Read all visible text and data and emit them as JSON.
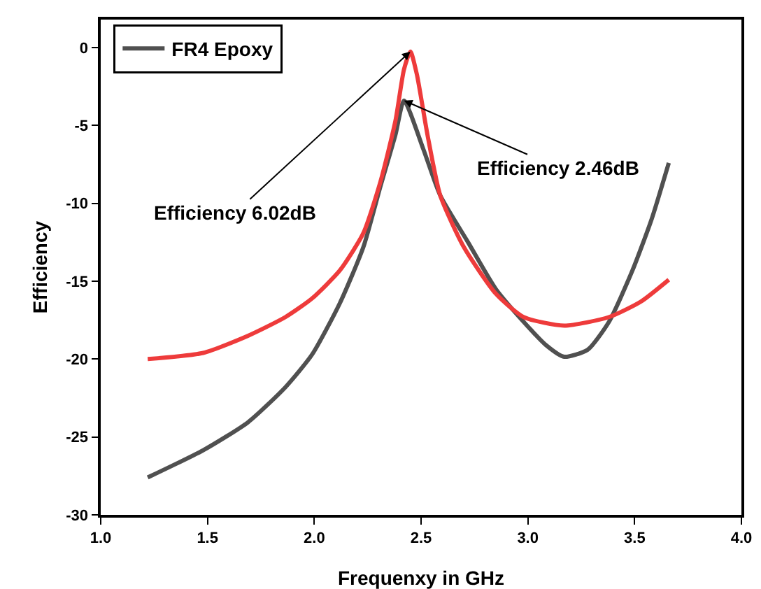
{
  "chart_data": {
    "type": "line",
    "xlabel": "Frequenxy in GHz",
    "ylabel": "Efficiency",
    "xlim": [
      1.0,
      4.0
    ],
    "xticks": [
      {
        "value": 1,
        "label": "1.0"
      },
      1.5,
      {
        "value": 2,
        "label": "2.0"
      },
      2.5,
      {
        "value": 3,
        "label": "3.0"
      },
      3.5,
      {
        "value": 4,
        "label": "4.0"
      }
    ],
    "ylim": [
      -30,
      1.8
    ],
    "yticks": [
      -30,
      -25,
      -20,
      -15,
      -10,
      -5,
      0
    ],
    "grid": false,
    "legend": "top left",
    "marker": "none",
    "line_style": "solid",
    "series": [
      {
        "name": "FR4 Epoxy",
        "color": "#505050",
        "x": [
          1.22,
          1.48,
          1.69,
          1.865,
          1.99,
          2.12,
          2.23,
          2.31,
          2.38,
          2.42,
          2.51,
          2.59,
          2.72,
          2.85,
          2.98,
          3.085,
          3.17,
          3.28,
          3.38,
          3.49,
          3.58,
          3.66
        ],
        "values": [
          -27.6,
          -25.85,
          -24.05,
          -21.8,
          -19.7,
          -16.4,
          -12.8,
          -8.9,
          -5.6,
          -3.4,
          -6.5,
          -9.5,
          -12.5,
          -15.5,
          -17.6,
          -19.1,
          -19.85,
          -19.4,
          -17.6,
          -14.3,
          -11.0,
          -7.4
        ]
      },
      {
        "color": "#ee3b3b",
        "x": [
          1.22,
          1.48,
          1.69,
          1.865,
          1.99,
          2.12,
          2.23,
          2.31,
          2.38,
          2.42,
          2.45,
          2.48,
          2.53,
          2.59,
          2.7,
          2.85,
          2.98,
          3.17,
          3.38,
          3.53,
          3.66
        ],
        "values": [
          -20.0,
          -19.6,
          -18.5,
          -17.3,
          -16.1,
          -14.3,
          -11.9,
          -8.6,
          -4.7,
          -1.4,
          -0.25,
          -1.7,
          -5.6,
          -9.5,
          -12.8,
          -15.8,
          -17.3,
          -17.85,
          -17.3,
          -16.3,
          -14.9
        ]
      }
    ],
    "annotations": [
      {
        "text": "Efficiency 6.02dB",
        "x": 2.45,
        "y": -0.25
      },
      {
        "text": "Efficiency 2.46dB",
        "x": 2.42,
        "y": -3.4
      }
    ]
  }
}
